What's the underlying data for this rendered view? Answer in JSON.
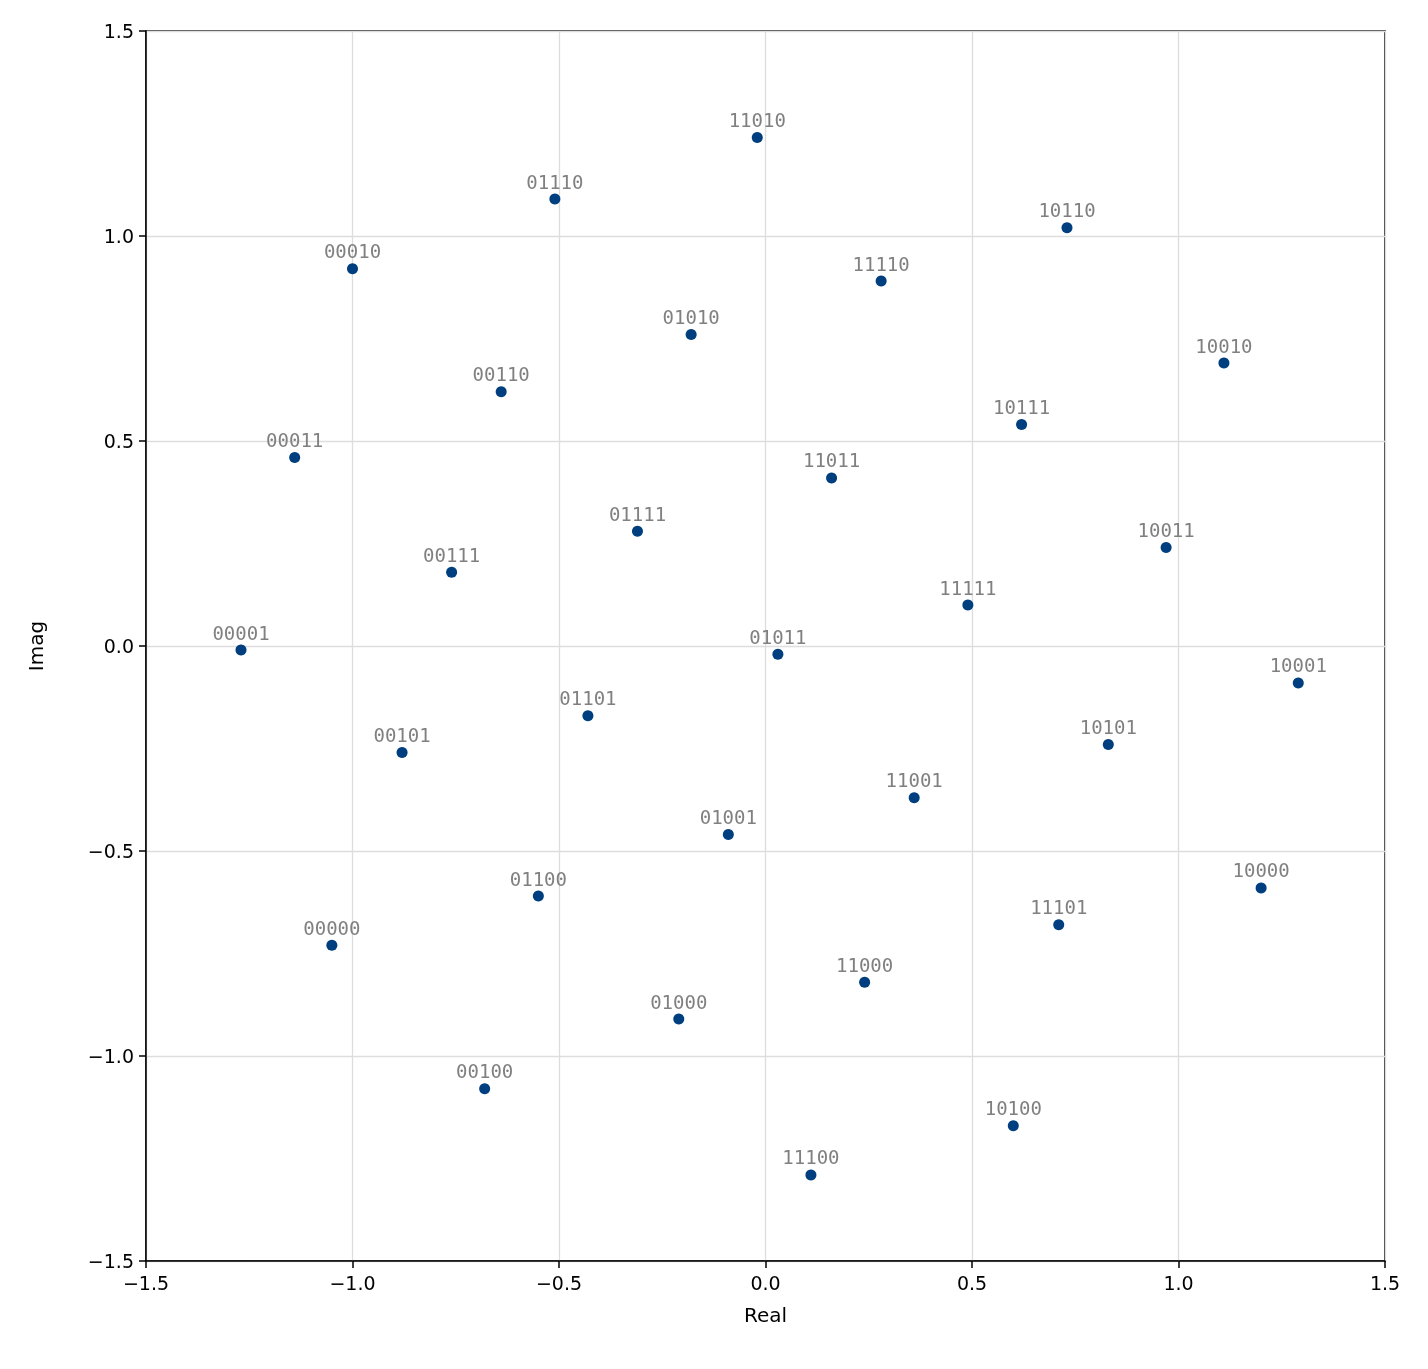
{
  "chart_data": {
    "type": "scatter",
    "xlabel": "Real",
    "ylabel": "Imag",
    "x": [
      -0.02,
      -0.51,
      -1.0,
      0.73,
      0.28,
      -0.18,
      1.11,
      -0.64,
      0.62,
      -1.14,
      0.16,
      -0.31,
      0.97,
      -0.76,
      0.49,
      -1.27,
      0.03,
      1.29,
      -0.43,
      0.83,
      -0.88,
      0.36,
      -0.09,
      1.2,
      -0.55,
      0.71,
      -1.05,
      0.24,
      -0.21,
      -0.68,
      0.6,
      0.11
    ],
    "values": [
      1.24,
      1.09,
      0.92,
      1.02,
      0.89,
      0.76,
      0.69,
      0.62,
      0.54,
      0.46,
      0.41,
      0.28,
      0.24,
      0.18,
      0.1,
      -0.01,
      -0.02,
      -0.09,
      -0.17,
      -0.24,
      -0.26,
      -0.37,
      -0.46,
      -0.59,
      -0.61,
      -0.68,
      -0.73,
      -0.82,
      -0.91,
      -1.08,
      -1.17,
      -1.29
    ],
    "annotations": [
      {
        "text": "11010",
        "x": -0.02,
        "y": 1.24
      },
      {
        "text": "01110",
        "x": -0.51,
        "y": 1.09
      },
      {
        "text": "00010",
        "x": -1.0,
        "y": 0.92
      },
      {
        "text": "10110",
        "x": 0.73,
        "y": 1.02
      },
      {
        "text": "11110",
        "x": 0.28,
        "y": 0.89
      },
      {
        "text": "01010",
        "x": -0.18,
        "y": 0.76
      },
      {
        "text": "10010",
        "x": 1.11,
        "y": 0.69
      },
      {
        "text": "00110",
        "x": -0.64,
        "y": 0.62
      },
      {
        "text": "10111",
        "x": 0.62,
        "y": 0.54
      },
      {
        "text": "00011",
        "x": -1.14,
        "y": 0.46
      },
      {
        "text": "11011",
        "x": 0.16,
        "y": 0.41
      },
      {
        "text": "01111",
        "x": -0.31,
        "y": 0.28
      },
      {
        "text": "10011",
        "x": 0.97,
        "y": 0.24
      },
      {
        "text": "00111",
        "x": -0.76,
        "y": 0.18
      },
      {
        "text": "11111",
        "x": 0.49,
        "y": 0.1
      },
      {
        "text": "00001",
        "x": -1.27,
        "y": -0.01
      },
      {
        "text": "01011",
        "x": 0.03,
        "y": -0.02
      },
      {
        "text": "10001",
        "x": 1.29,
        "y": -0.09
      },
      {
        "text": "01101",
        "x": -0.43,
        "y": -0.17
      },
      {
        "text": "10101",
        "x": 0.83,
        "y": -0.24
      },
      {
        "text": "00101",
        "x": -0.88,
        "y": -0.26
      },
      {
        "text": "11001",
        "x": 0.36,
        "y": -0.37
      },
      {
        "text": "01001",
        "x": -0.09,
        "y": -0.46
      },
      {
        "text": "10000",
        "x": 1.2,
        "y": -0.59
      },
      {
        "text": "01100",
        "x": -0.55,
        "y": -0.61
      },
      {
        "text": "11101",
        "x": 0.71,
        "y": -0.68
      },
      {
        "text": "00000",
        "x": -1.05,
        "y": -0.73
      },
      {
        "text": "11000",
        "x": 0.24,
        "y": -0.82
      },
      {
        "text": "01000",
        "x": -0.21,
        "y": -0.91
      },
      {
        "text": "00100",
        "x": -0.68,
        "y": -1.08
      },
      {
        "text": "10100",
        "x": 0.6,
        "y": -1.17
      },
      {
        "text": "11100",
        "x": 0.11,
        "y": -1.29
      }
    ],
    "color": "#003f7f",
    "marker": "circle",
    "grid": true,
    "xlim": [
      -1.5,
      1.5
    ],
    "ylim": [
      -1.5,
      1.5
    ],
    "xticks": [
      {
        "value": -1.5,
        "label": "−1.5"
      },
      {
        "value": -1,
        "label": "−1.0"
      },
      {
        "value": -0.5,
        "label": "−0.5"
      },
      {
        "value": 0,
        "label": "0.0"
      },
      0.5,
      {
        "value": 1,
        "label": "1.0"
      },
      1.5
    ],
    "yticks": [
      {
        "value": -1.5,
        "label": "−1.5"
      },
      {
        "value": -1,
        "label": "−1.0"
      },
      {
        "value": -0.5,
        "label": "−0.5"
      },
      {
        "value": 0,
        "label": "0.0"
      },
      0.5,
      {
        "value": 1,
        "label": "1.0"
      },
      1.5
    ]
  }
}
